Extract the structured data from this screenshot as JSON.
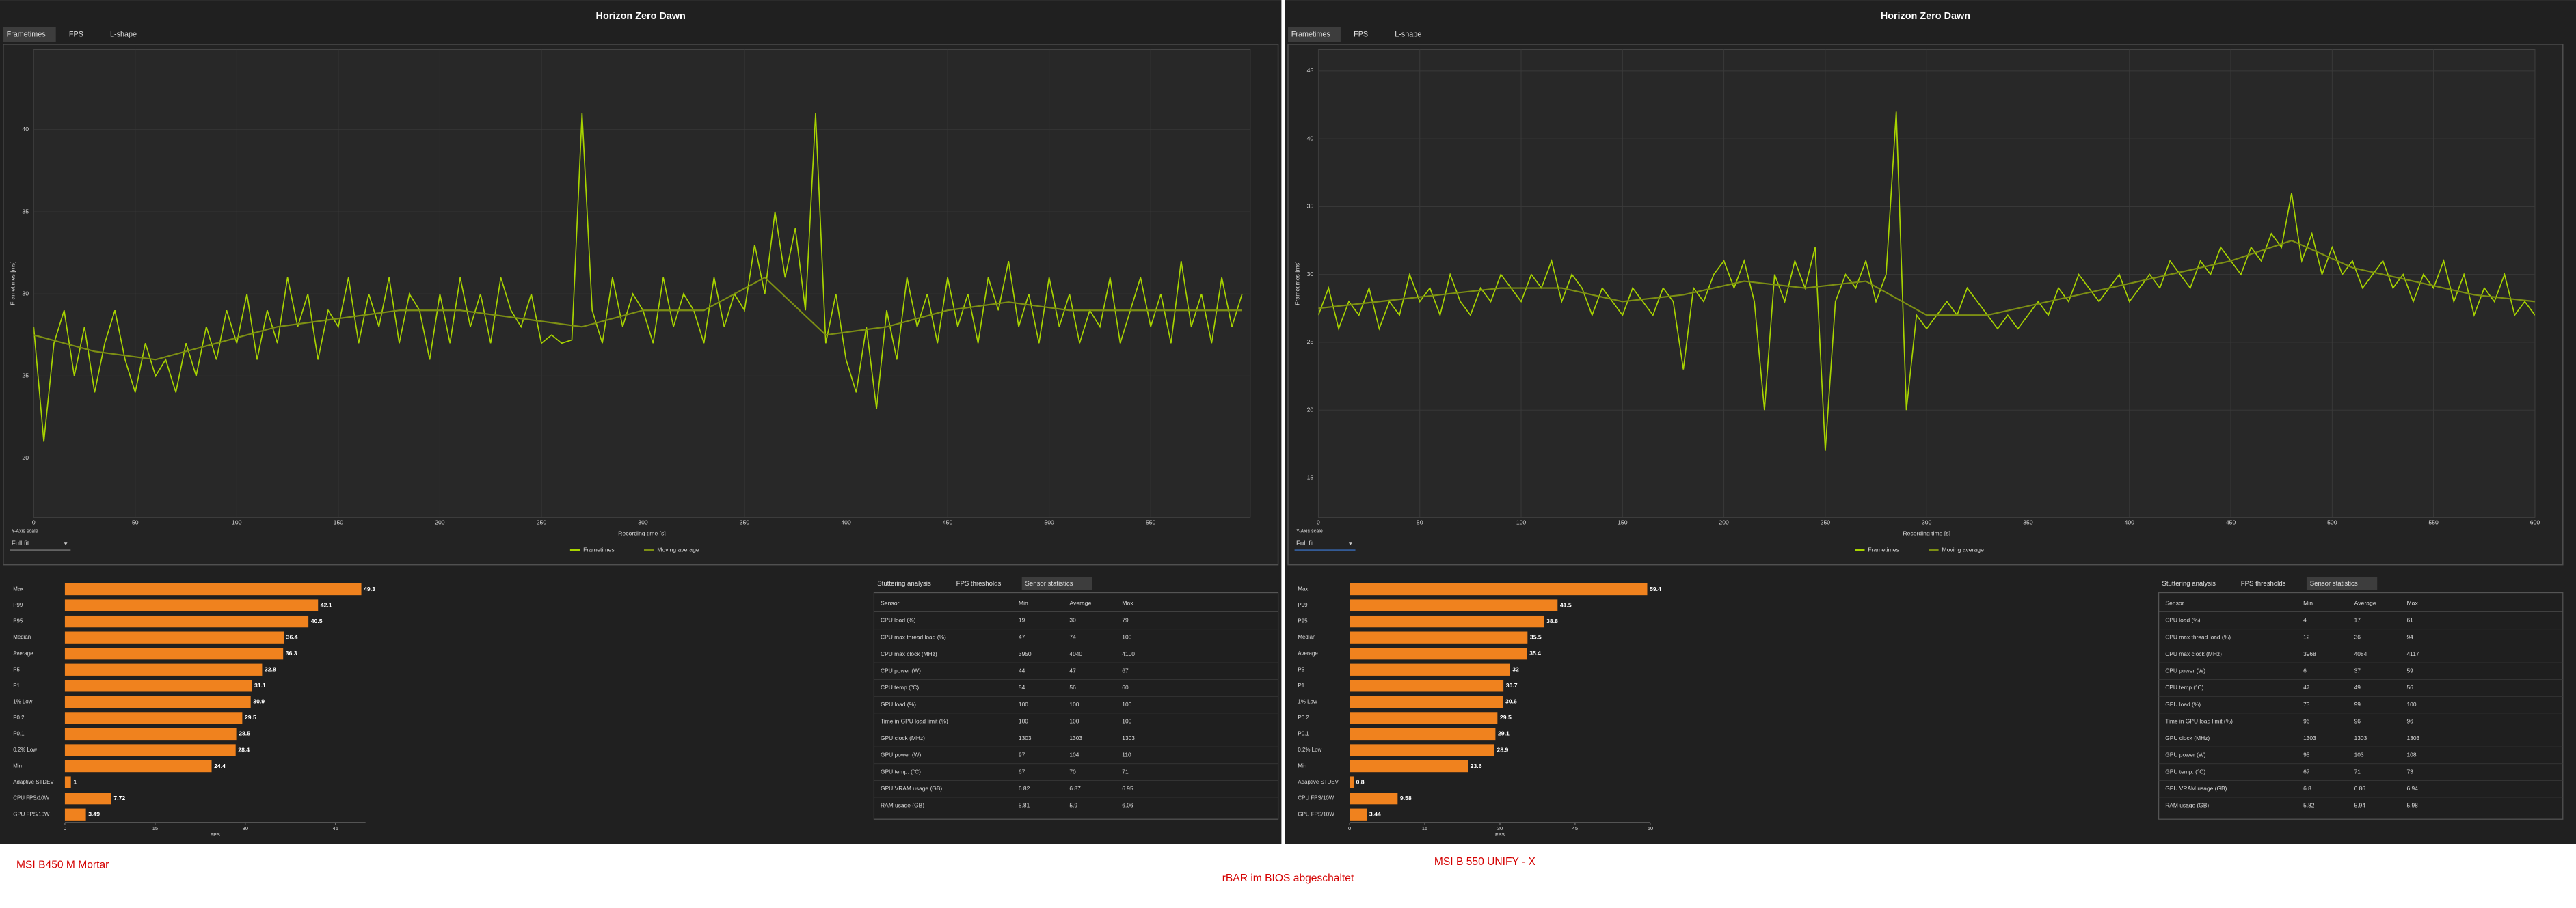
{
  "panels": [
    {
      "title": "Horizon Zero Dawn",
      "tabs": [
        "Frametimes",
        "FPS",
        "L-shape"
      ],
      "frametime_chart": {
        "type": "line",
        "ylabel": "Frametimes [ms]",
        "xlabel": "Recording time [s]",
        "xlim": [
          0,
          599
        ],
        "ylim": [
          16.4,
          44.9
        ],
        "xticks": [
          0,
          50,
          100,
          150,
          200,
          250,
          300,
          350,
          400,
          450,
          500,
          550
        ],
        "yticks": [
          20,
          25,
          30,
          35,
          40
        ],
        "grid": true,
        "axis_scale_label": "Y-Axis scale",
        "axis_scale_value": "Full fit",
        "series": [
          {
            "name": "Frametimes",
            "color": "#a8d400",
            "x": [
              0,
              5,
              10,
              15,
              20,
              25,
              30,
              35,
              40,
              45,
              50,
              55,
              60,
              65,
              70,
              75,
              80,
              85,
              90,
              95,
              100,
              105,
              110,
              115,
              120,
              125,
              130,
              135,
              140,
              145,
              150,
              155,
              160,
              165,
              170,
              175,
              180,
              185,
              190,
              195,
              200,
              205,
              210,
              215,
              220,
              225,
              230,
              235,
              240,
              245,
              250,
              255,
              260,
              265,
              270,
              275,
              280,
              285,
              290,
              295,
              300,
              305,
              310,
              315,
              320,
              325,
              330,
              335,
              340,
              345,
              350,
              355,
              360,
              365,
              370,
              375,
              380,
              385,
              390,
              395,
              400,
              405,
              410,
              415,
              420,
              425,
              430,
              435,
              440,
              445,
              450,
              455,
              460,
              465,
              470,
              475,
              480,
              485,
              490,
              495,
              500,
              505,
              510,
              515,
              520,
              525,
              530,
              535,
              540,
              545,
              550,
              555,
              560,
              565,
              570,
              575,
              580,
              585,
              590,
              595
            ],
            "values": [
              28,
              21,
              27,
              29,
              25,
              28,
              24,
              27,
              29,
              26,
              24,
              27,
              25,
              26,
              24,
              27,
              25,
              28,
              26,
              29,
              27,
              30,
              26,
              29,
              27,
              31,
              28,
              30,
              26,
              29,
              28,
              31,
              27,
              30,
              28,
              31,
              27,
              30,
              29,
              26,
              30,
              27,
              31,
              28,
              30,
              27,
              31,
              29,
              28,
              30,
              27,
              27.5,
              27,
              27.2,
              41,
              29,
              27,
              31,
              28,
              30,
              29,
              27,
              31,
              28,
              30,
              29,
              27,
              31,
              28,
              30,
              29,
              33,
              30,
              35,
              31,
              34,
              29,
              41,
              27,
              30,
              26,
              24,
              28,
              23,
              29,
              26,
              31,
              28,
              30,
              27,
              31,
              28,
              30,
              27,
              31,
              29,
              32,
              28,
              30,
              27,
              31,
              28,
              30,
              27,
              29,
              28,
              31,
              27,
              29,
              31,
              28,
              30,
              27,
              32,
              28,
              30,
              27,
              31,
              28,
              30
            ]
          },
          {
            "name": "Moving average",
            "color": "#7d8f14",
            "x": [
              0,
              30,
              60,
              90,
              120,
              150,
              180,
              210,
              240,
              270,
              300,
              330,
              360,
              390,
              420,
              450,
              480,
              510,
              540,
              570,
              595
            ],
            "values": [
              27.5,
              26.5,
              26,
              27,
              28,
              28.5,
              29,
              29,
              28.5,
              28,
              29,
              29,
              31,
              27.5,
              28,
              29,
              29.5,
              29,
              29,
              29,
              29
            ]
          }
        ]
      },
      "bar_chart": {
        "type": "bar",
        "orientation": "horizontal",
        "xlabel": "FPS",
        "color": "#f0821e",
        "categories": [
          "Max",
          "P99",
          "P95",
          "Median",
          "Average",
          "P5",
          "P1",
          "1% Low",
          "P0.2",
          "P0.1",
          "0.2% Low",
          "Min",
          "Adaptive STDEV",
          "CPU FPS/10W",
          "GPU FPS/10W"
        ],
        "values": [
          49.3,
          42.1,
          40.5,
          36.4,
          36.3,
          32.8,
          31.1,
          30.9,
          29.5,
          28.5,
          28.4,
          24.4,
          1,
          7.72,
          3.49
        ],
        "xlim": [
          0,
          50
        ],
        "xticks": [
          0,
          15,
          30,
          45
        ]
      },
      "table_tabs": [
        "Stuttering analysis",
        "FPS thresholds",
        "Sensor statistics"
      ],
      "table": {
        "columns": [
          "Sensor",
          "Min",
          "Average",
          "Max"
        ],
        "rows": [
          [
            "CPU load (%)",
            19,
            30,
            79
          ],
          [
            "CPU max thread load (%)",
            47,
            74,
            100
          ],
          [
            "CPU max clock (MHz)",
            3950,
            4040,
            4100
          ],
          [
            "CPU power (W)",
            44,
            47,
            67
          ],
          [
            "CPU temp (°C)",
            54,
            56,
            60
          ],
          [
            "GPU load (%)",
            100,
            100,
            100
          ],
          [
            "Time in GPU load limit (%)",
            100,
            100,
            100
          ],
          [
            "GPU clock (MHz)",
            1303,
            1303,
            1303
          ],
          [
            "GPU power (W)",
            97,
            104,
            110
          ],
          [
            "GPU temp. (°C)",
            67,
            70,
            71
          ],
          [
            "GPU VRAM usage (GB)",
            6.82,
            6.87,
            6.95
          ],
          [
            "RAM usage (GB)",
            5.81,
            5.9,
            6.06
          ]
        ]
      },
      "caption": "MSI B450 M Mortar"
    },
    {
      "title": "Horizon Zero Dawn",
      "tabs": [
        "Frametimes",
        "FPS",
        "L-shape"
      ],
      "frametime_chart": {
        "type": "line",
        "ylabel": "Frametimes [ms]",
        "xlabel": "Recording time [s]",
        "xlim": [
          0,
          600
        ],
        "ylim": [
          12.1,
          46.6
        ],
        "xticks": [
          0,
          50,
          100,
          150,
          200,
          250,
          300,
          350,
          400,
          450,
          500,
          550,
          600
        ],
        "yticks": [
          15,
          20,
          25,
          30,
          35,
          40,
          45
        ],
        "grid": true,
        "axis_scale_label": "Y-Axis scale",
        "axis_scale_value": "Full fit",
        "series": [
          {
            "name": "Frametimes",
            "color": "#a8d400",
            "x": [
              0,
              5,
              10,
              15,
              20,
              25,
              30,
              35,
              40,
              45,
              50,
              55,
              60,
              65,
              70,
              75,
              80,
              85,
              90,
              95,
              100,
              105,
              110,
              115,
              120,
              125,
              130,
              135,
              140,
              145,
              150,
              155,
              160,
              165,
              170,
              175,
              180,
              185,
              190,
              195,
              200,
              205,
              210,
              215,
              220,
              225,
              230,
              235,
              240,
              245,
              250,
              255,
              260,
              265,
              270,
              275,
              280,
              285,
              290,
              295,
              300,
              305,
              310,
              315,
              320,
              325,
              330,
              335,
              340,
              345,
              350,
              355,
              360,
              365,
              370,
              375,
              380,
              385,
              390,
              395,
              400,
              405,
              410,
              415,
              420,
              425,
              430,
              435,
              440,
              445,
              450,
              455,
              460,
              465,
              470,
              475,
              480,
              485,
              490,
              495,
              500,
              505,
              510,
              515,
              520,
              525,
              530,
              535,
              540,
              545,
              550,
              555,
              560,
              565,
              570,
              575,
              580,
              585,
              590,
              595,
              600
            ],
            "values": [
              27,
              29,
              26,
              28,
              27,
              29,
              26,
              28,
              27,
              30,
              28,
              29,
              27,
              30,
              28,
              27,
              29,
              28,
              30,
              29,
              28,
              30,
              29,
              31,
              28,
              30,
              29,
              27,
              29,
              28,
              27,
              29,
              28,
              27,
              29,
              28,
              23,
              29,
              28,
              30,
              31,
              29,
              31,
              28,
              20,
              30,
              28,
              31,
              29,
              32,
              17,
              28,
              30,
              29,
              31,
              28,
              30,
              42,
              20,
              27,
              26,
              27,
              28,
              27,
              29,
              28,
              27,
              26,
              27,
              26,
              27,
              28,
              27,
              29,
              28,
              30,
              29,
              28,
              29,
              30,
              28,
              29,
              30,
              29,
              31,
              30,
              29,
              31,
              30,
              32,
              31,
              30,
              32,
              31,
              33,
              32,
              36,
              31,
              33,
              30,
              32,
              30,
              31,
              29,
              30,
              31,
              29,
              30,
              28,
              30,
              29,
              31,
              28,
              30,
              27,
              29,
              28,
              30,
              27,
              28,
              27
            ]
          },
          {
            "name": "Moving average",
            "color": "#7d8f14",
            "x": [
              0,
              30,
              60,
              90,
              120,
              150,
              180,
              210,
              240,
              270,
              300,
              330,
              360,
              390,
              420,
              450,
              480,
              510,
              540,
              570,
              600
            ],
            "values": [
              27.5,
              28,
              28.5,
              29,
              29,
              28,
              28.5,
              29.5,
              29,
              29.5,
              27,
              27,
              28,
              29,
              30,
              31,
              32.5,
              30.5,
              29.5,
              28.5,
              28
            ]
          }
        ]
      },
      "bar_chart": {
        "type": "bar",
        "orientation": "horizontal",
        "xlabel": "FPS",
        "color": "#f0821e",
        "categories": [
          "Max",
          "P99",
          "P95",
          "Median",
          "Average",
          "P5",
          "P1",
          "1% Low",
          "P0.2",
          "P0.1",
          "0.2% Low",
          "Min",
          "Adaptive STDEV",
          "CPU FPS/10W",
          "GPU FPS/10W"
        ],
        "values": [
          59.4,
          41.5,
          38.8,
          35.5,
          35.4,
          32,
          30.7,
          30.6,
          29.5,
          29.1,
          28.9,
          23.6,
          0.8,
          9.58,
          3.44
        ],
        "xlim": [
          0,
          60
        ],
        "xticks": [
          0,
          15,
          30,
          45,
          60
        ]
      },
      "table_tabs": [
        "Stuttering analysis",
        "FPS thresholds",
        "Sensor statistics"
      ],
      "table": {
        "columns": [
          "Sensor",
          "Min",
          "Average",
          "Max"
        ],
        "rows": [
          [
            "CPU load (%)",
            4,
            17,
            61
          ],
          [
            "CPU max thread load (%)",
            12,
            36,
            94
          ],
          [
            "CPU max clock (MHz)",
            3968,
            4084,
            4117
          ],
          [
            "CPU power (W)",
            6,
            37,
            59
          ],
          [
            "CPU temp (°C)",
            47,
            49,
            56
          ],
          [
            "GPU load (%)",
            73,
            99,
            100
          ],
          [
            "Time in GPU load limit (%)",
            96,
            96,
            96
          ],
          [
            "GPU clock (MHz)",
            1303,
            1303,
            1303
          ],
          [
            "GPU power (W)",
            95,
            103,
            108
          ],
          [
            "GPU temp. (°C)",
            67,
            71,
            73
          ],
          [
            "GPU VRAM usage (GB)",
            6.8,
            6.86,
            6.94
          ],
          [
            "RAM usage (GB)",
            5.82,
            5.94,
            5.98
          ]
        ]
      },
      "caption": "MSI B 550 UNIFY - X"
    }
  ],
  "annotation": "rBAR im BIOS abgeschaltet"
}
